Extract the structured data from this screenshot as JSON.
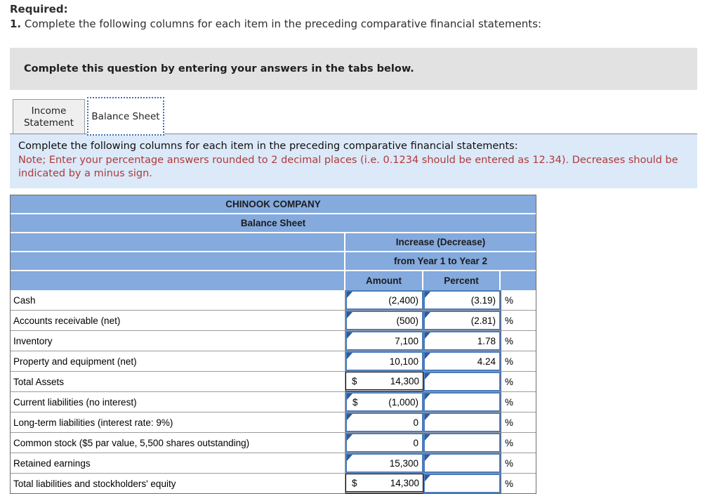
{
  "header": {
    "required_label": "Required:",
    "item_number": "1.",
    "instruction": "Complete the following columns for each item in the preceding comparative financial statements:"
  },
  "banner": {
    "text": "Complete this question by entering your answers in the tabs below."
  },
  "tabs": [
    {
      "label": "Income Statement",
      "active": false
    },
    {
      "label": "Balance Sheet",
      "active": true
    }
  ],
  "instructions": {
    "line": "Complete the following columns for each item in the preceding comparative financial statements:",
    "note": "Note; Enter your percentage answers rounded to 2 decimal places (i.e. 0.1234 should be entered as 12.34). Decreases should be indicated by a minus sign."
  },
  "table": {
    "title": "CHINOOK COMPANY",
    "subtitle": "Balance Sheet",
    "group_header_line1": "Increase (Decrease)",
    "group_header_line2": "from Year 1 to Year 2",
    "columns": {
      "amount": "Amount",
      "percent": "Percent"
    },
    "percent_symbol": "%",
    "rows": [
      {
        "label": "Cash",
        "currency": "",
        "amount": "(2,400)",
        "amount_type": "input",
        "percent": "(3.19)"
      },
      {
        "label": "Accounts receivable (net)",
        "currency": "",
        "amount": "(500)",
        "amount_type": "input",
        "percent": "(2.81)"
      },
      {
        "label": "Inventory",
        "currency": "",
        "amount": "7,100",
        "amount_type": "input",
        "percent": "1.78"
      },
      {
        "label": "Property and equipment (net)",
        "currency": "",
        "amount": "10,100",
        "amount_type": "input",
        "percent": "4.24"
      },
      {
        "label": "Total Assets",
        "currency": "$",
        "amount": "14,300",
        "amount_type": "total",
        "percent": ""
      },
      {
        "label": "Current liabilities (no interest)",
        "currency": "$",
        "amount": "(1,000)",
        "amount_type": "input",
        "percent": ""
      },
      {
        "label": "Long-term liabilities (interest rate: 9%)",
        "currency": "",
        "amount": "0",
        "amount_type": "input",
        "percent": ""
      },
      {
        "label": "Common stock ($5 par value, 5,500 shares outstanding)",
        "currency": "",
        "amount": "0",
        "amount_type": "input",
        "percent": ""
      },
      {
        "label": "Retained earnings",
        "currency": "",
        "amount": "15,300",
        "amount_type": "input",
        "percent": ""
      },
      {
        "label": "Total liabilities and stockholders' equity",
        "currency": "$",
        "amount": "14,300",
        "amount_type": "total",
        "percent": ""
      }
    ]
  },
  "colors": {
    "header_blue": "#84aade",
    "input_border_blue": "#4b7cbc",
    "flag_blue": "#2d5b9e",
    "note_red": "#b03a3a",
    "instruction_bg": "#dbe9f8",
    "banner_bg": "#e2e2e2"
  }
}
